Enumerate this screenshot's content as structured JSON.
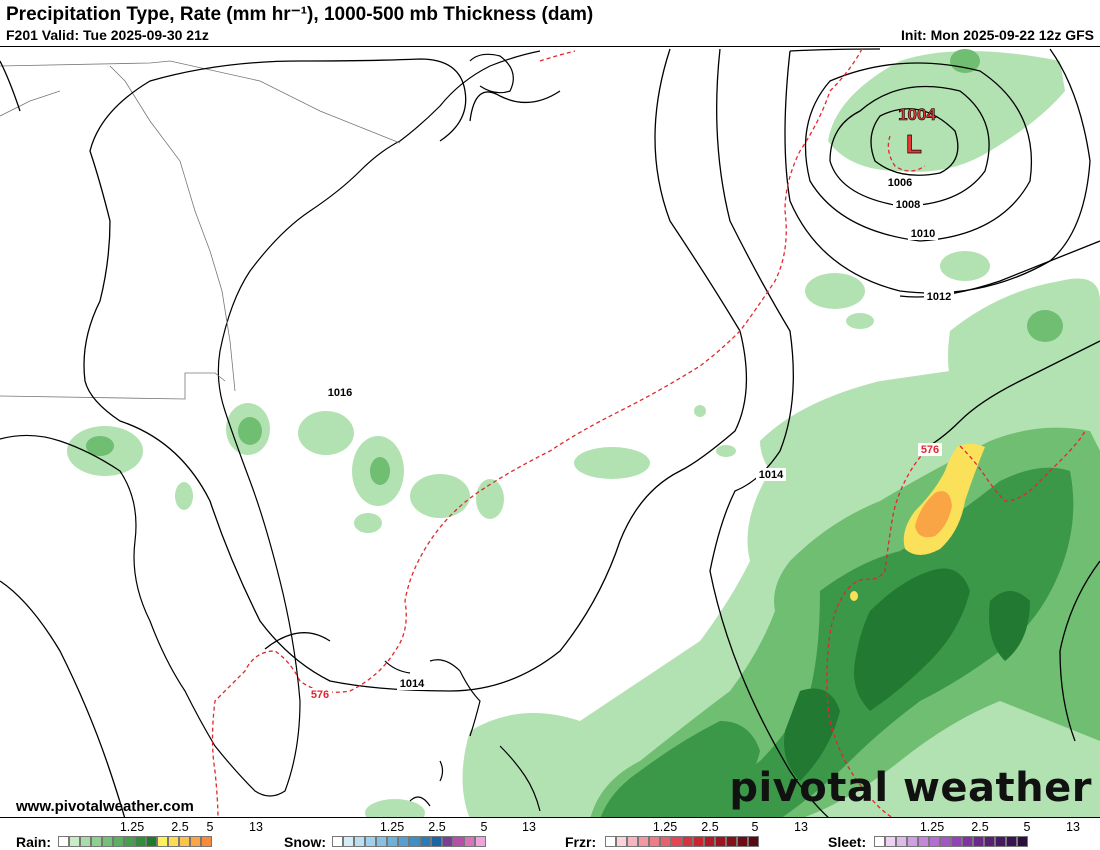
{
  "header": {
    "title": "Precipitation Type, Rate (mm hr⁻¹), 1000-500 mb Thickness (dam)",
    "valid": "F201 Valid: Tue 2025-09-30 21z",
    "init": "Init: Mon 2025-09-22 12z GFS"
  },
  "map": {
    "low_center": {
      "pressure": "1004",
      "letter": "L"
    },
    "isobar_labels": [
      "1004",
      "1006",
      "1008",
      "1010",
      "1012",
      "1014",
      "1016"
    ],
    "thickness_labels": [
      "576"
    ],
    "colors": {
      "isobar": "#000000",
      "thickness": "#e0282e",
      "low": "#e53935"
    }
  },
  "footer": {
    "website": "www.pivotalweather.com",
    "brand": "pivotal weather"
  },
  "legends": [
    {
      "name": "Rain:",
      "ticks": [
        "1.25",
        "2.5",
        "5",
        "13"
      ],
      "colors": [
        "#ffffff",
        "#c7ecc6",
        "#a8dca7",
        "#8fcf8f",
        "#75c078",
        "#5cb061",
        "#44a04c",
        "#2f8d3b",
        "#1f7a2d",
        "#fbf25c",
        "#fddc55",
        "#fcc24c",
        "#fba644",
        "#f98a3a"
      ]
    },
    {
      "name": "Snow:",
      "ticks": [
        "1.25",
        "2.5",
        "5",
        "13"
      ],
      "colors": [
        "#ffffff",
        "#d3ecf7",
        "#b9e0f2",
        "#9fd1ec",
        "#85c1e4",
        "#6db0da",
        "#569fd0",
        "#3f8ec6",
        "#2b7bb9",
        "#1d64a6",
        "#7d3c98",
        "#b44faa",
        "#d873bf",
        "#f0a3da"
      ]
    },
    {
      "name": "Frzr:",
      "ticks": [
        "1.25",
        "2.5",
        "5",
        "13"
      ],
      "colors": [
        "#ffffff",
        "#fbd3d9",
        "#f7b5bf",
        "#f297a3",
        "#ee7b86",
        "#e8606b",
        "#e04753",
        "#d63340",
        "#c82431",
        "#b31a27",
        "#9b141f",
        "#841019",
        "#6e0c14",
        "#590910"
      ]
    },
    {
      "name": "Sleet:",
      "ticks": [
        "1.25",
        "2.5",
        "5",
        "13"
      ],
      "colors": [
        "#ffffff",
        "#ecd3f2",
        "#dfbaeb",
        "#d1a0e3",
        "#c386da",
        "#b46dd0",
        "#a456c4",
        "#9342b6",
        "#7f33a2",
        "#6b288c",
        "#581f76",
        "#471962",
        "#37134f",
        "#2a0f3d"
      ]
    }
  ]
}
